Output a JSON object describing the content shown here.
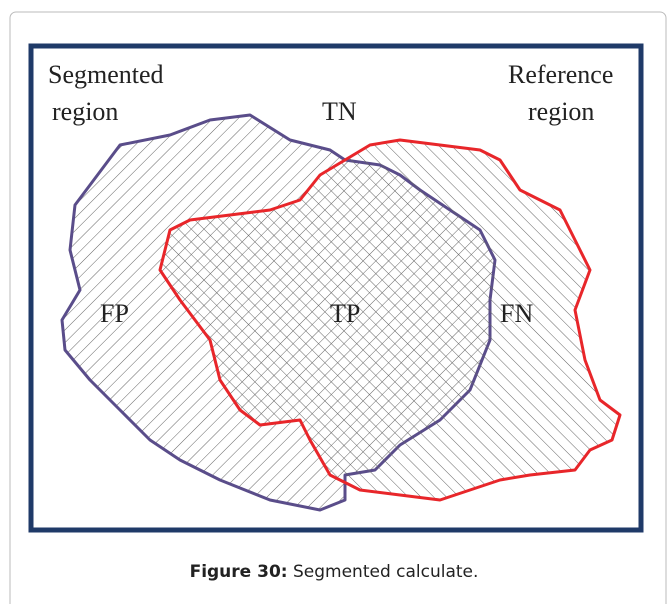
{
  "figure": {
    "labels": {
      "segmented": [
        "Segmented",
        "region"
      ],
      "reference": [
        "Reference",
        "region"
      ],
      "tn": "TN",
      "fp": "FP",
      "tp": "TP",
      "fn": "FN"
    },
    "caption": {
      "label": "Figure 30:",
      "text": "Segmented calculate."
    }
  }
}
